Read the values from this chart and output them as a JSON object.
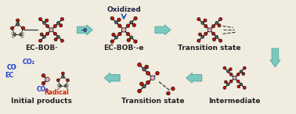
{
  "bg_color": "#f0ece0",
  "top_labels": [
    "EC-BOB·",
    "EC-BOB·-e",
    "Transition state"
  ],
  "bottom_labels": [
    "Initial products",
    "Transition state",
    "Intermediate"
  ],
  "oxidized_label": "Oxidized",
  "radical_label": "Radical",
  "arrow_color": "#70c4bc",
  "arrow_outline": "#50a89e",
  "label_color_blue": "#1a3ccc",
  "label_color_red": "#cc2200",
  "label_color_black": "#222222",
  "label_bold_size": 6.5,
  "fig_width": 3.78,
  "fig_height": 1.46,
  "dpi": 100,
  "C": "#606060",
  "O": "#cc1100",
  "B": "#e8a8b8",
  "H": "#d8d8c0",
  "bond": "#333333"
}
